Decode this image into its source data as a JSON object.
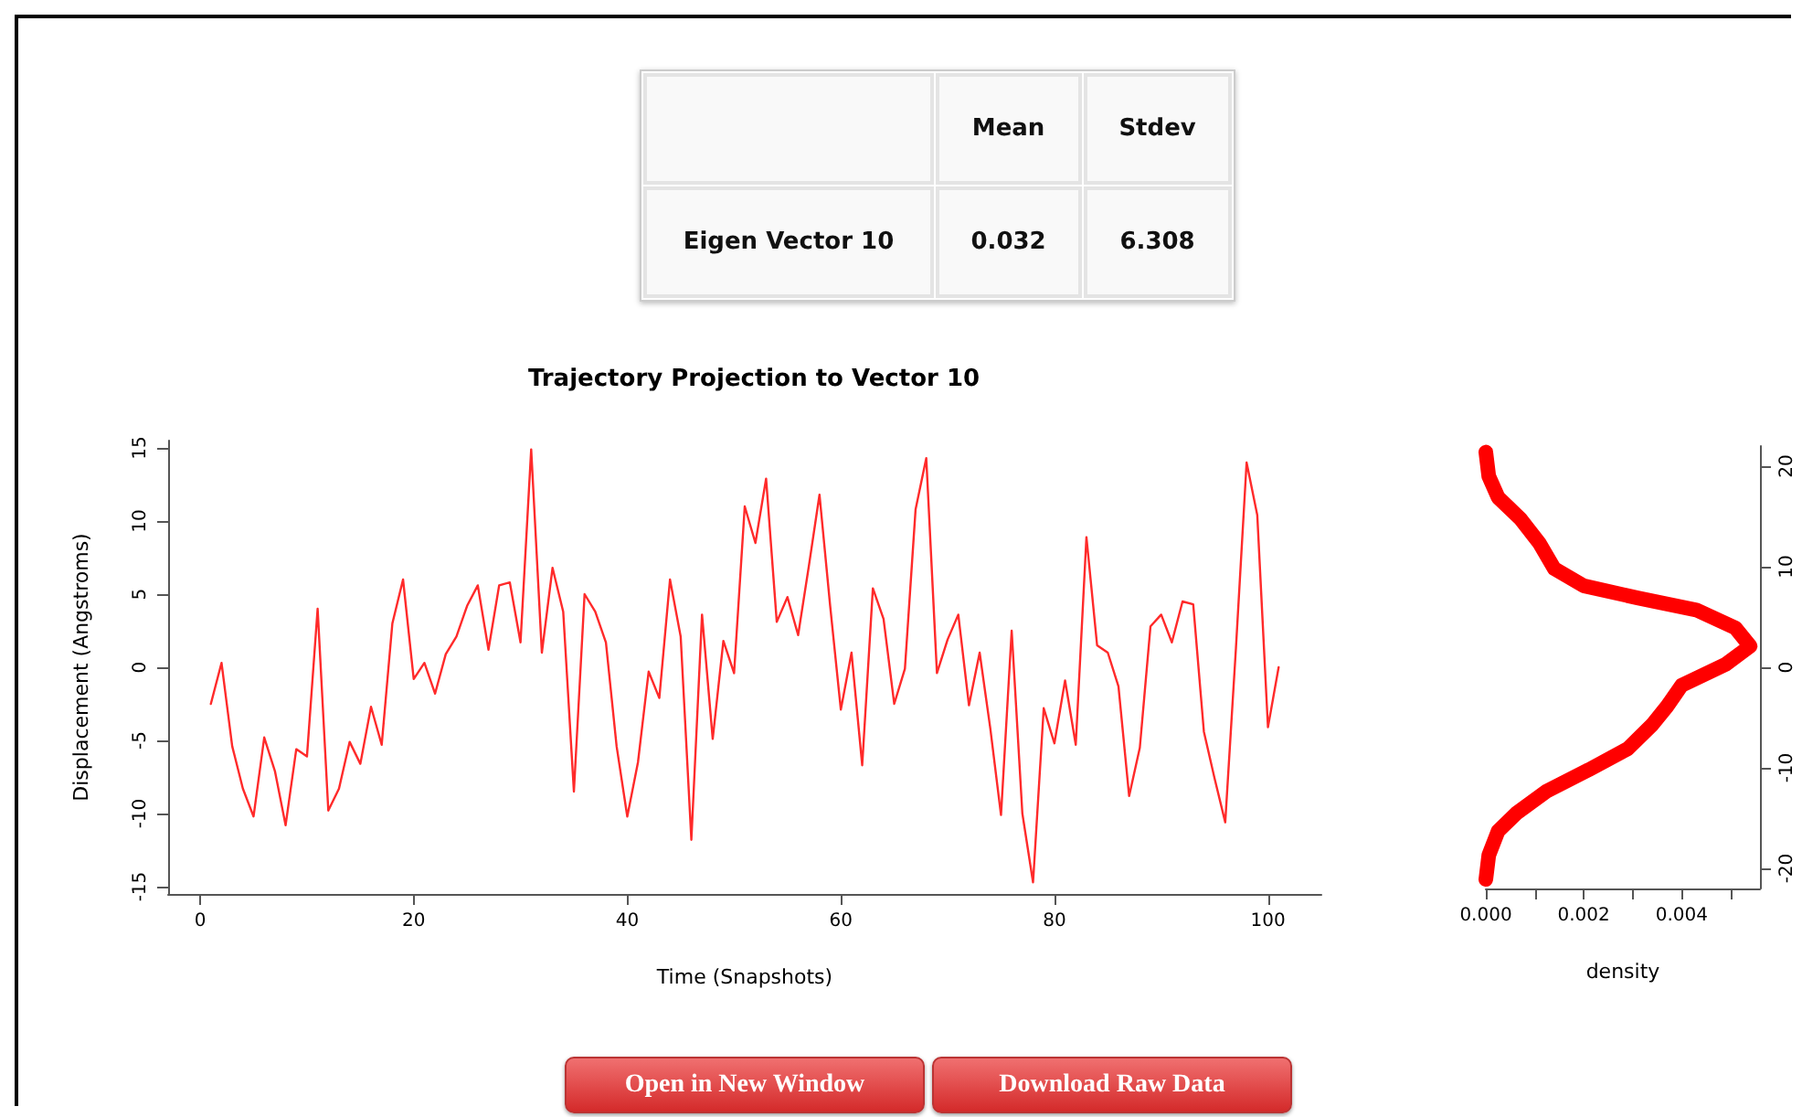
{
  "chart_data": [
    {
      "type": "other",
      "annotations": [
        "Mean",
        "Stdev",
        "Eigen Vector 10",
        "0.032",
        "6.308",
        "Open in New Window",
        "Download Raw Data"
      ]
    },
    {
      "type": "line",
      "title": "Trajectory Projection to Vector 10",
      "xlabel": "Time (Snapshots)",
      "ylabel": "Displacement (Angstroms)",
      "x": [
        1,
        2,
        3,
        4,
        5,
        6,
        7,
        8,
        9,
        10,
        11,
        12,
        13,
        14,
        15,
        16,
        17,
        18,
        19,
        20,
        21,
        22,
        23,
        24,
        25,
        26,
        27,
        28,
        29,
        30,
        31,
        32,
        33,
        34,
        35,
        36,
        37,
        38,
        39,
        40,
        41,
        42,
        43,
        44,
        45,
        46,
        47,
        48,
        49,
        50,
        51,
        52,
        53,
        54,
        55,
        56,
        57,
        58,
        59,
        60,
        61,
        62,
        63,
        64,
        65,
        66,
        67,
        68,
        69,
        70,
        71,
        72,
        73,
        74,
        75,
        76,
        77,
        78,
        79,
        80,
        81,
        82,
        83,
        84,
        85,
        86,
        87,
        88,
        89,
        90,
        91,
        92,
        93,
        94,
        95,
        96,
        97,
        98,
        99,
        100,
        101
      ],
      "series": [
        {
          "color": "#ff2a2a",
          "values": [
            -2.5,
            0.3,
            -5.4,
            -8.3,
            -10.2,
            -4.8,
            -7.1,
            -10.8,
            -5.6,
            -6.1,
            4.0,
            -9.8,
            -8.3,
            -5.1,
            -6.6,
            -2.7,
            -5.3,
            3.0,
            6.0,
            -0.8,
            0.3,
            -1.8,
            0.9,
            2.1,
            4.2,
            5.6,
            1.2,
            5.6,
            5.8,
            1.7,
            14.9,
            1.0,
            6.8,
            3.8,
            -8.5,
            5.0,
            3.8,
            1.7,
            -5.4,
            -10.2,
            -6.5,
            -0.3,
            -2.1,
            6.0,
            2.1,
            -11.8,
            3.6,
            -4.9,
            1.8,
            -0.4,
            11.0,
            8.5,
            12.9,
            3.1,
            4.8,
            2.2,
            6.9,
            11.8,
            4.2,
            -2.9,
            1.0,
            -6.7,
            5.4,
            3.3,
            -2.5,
            -0.1,
            10.8,
            14.3,
            -0.4,
            1.9,
            3.6,
            -2.6,
            1.0,
            -4.2,
            -10.1,
            2.5,
            -10.0,
            -14.7,
            -2.8,
            -5.2,
            -0.9,
            -5.3,
            8.9,
            1.5,
            1.0,
            -1.3,
            -8.8,
            -5.5,
            2.8,
            3.6,
            1.7,
            4.5,
            4.3,
            -4.4,
            -7.6,
            -10.6,
            1.3,
            14.0,
            10.4,
            -4.1,
            0.0
          ]
        }
      ],
      "xlim": [
        -3,
        105
      ],
      "xticks": [
        0,
        20,
        40,
        60,
        80,
        100
      ],
      "ylim": [
        -15.5,
        15.5
      ],
      "yticks": [
        -15,
        -10,
        -5,
        0,
        5,
        10,
        15
      ],
      "grid": false
    },
    {
      "type": "line",
      "xlabel": "density",
      "series": [
        {
          "color": "#ff0000",
          "axis": "y2",
          "x": [
            0,
            6e-05,
            0.00025,
            0.00063,
            0.00125,
            0.0021,
            0.0029,
            0.0034,
            0.0037,
            0.004,
            0.0049,
            0.0054,
            0.0051,
            0.0043,
            0.0031,
            0.002,
            0.0014,
            0.0011,
            0.0007,
            0.00025,
            6e-05,
            0
          ],
          "values": [
            -21.1,
            -18.7,
            -16.3,
            -14.5,
            -12.3,
            -10.2,
            -8.1,
            -5.7,
            -3.9,
            -1.8,
            0.3,
            2.1,
            3.9,
            5.7,
            6.9,
            8.1,
            9.8,
            12.3,
            14.8,
            16.9,
            19.0,
            21.4
          ]
        }
      ],
      "xlim": [
        0,
        0.0056
      ],
      "xticks": [
        {
          "value": 0,
          "label": "0.000"
        },
        {
          "value": 0.001,
          "label": null
        },
        {
          "value": 0.002,
          "label": "0.002"
        },
        {
          "value": 0.003,
          "label": null
        },
        {
          "value": 0.004,
          "label": "0.004"
        },
        {
          "value": 0.005,
          "label": null
        }
      ],
      "y2lim": [
        -22,
        22
      ],
      "y2ticks": [
        -20,
        -10,
        0,
        10,
        20
      ],
      "grid": false
    }
  ]
}
